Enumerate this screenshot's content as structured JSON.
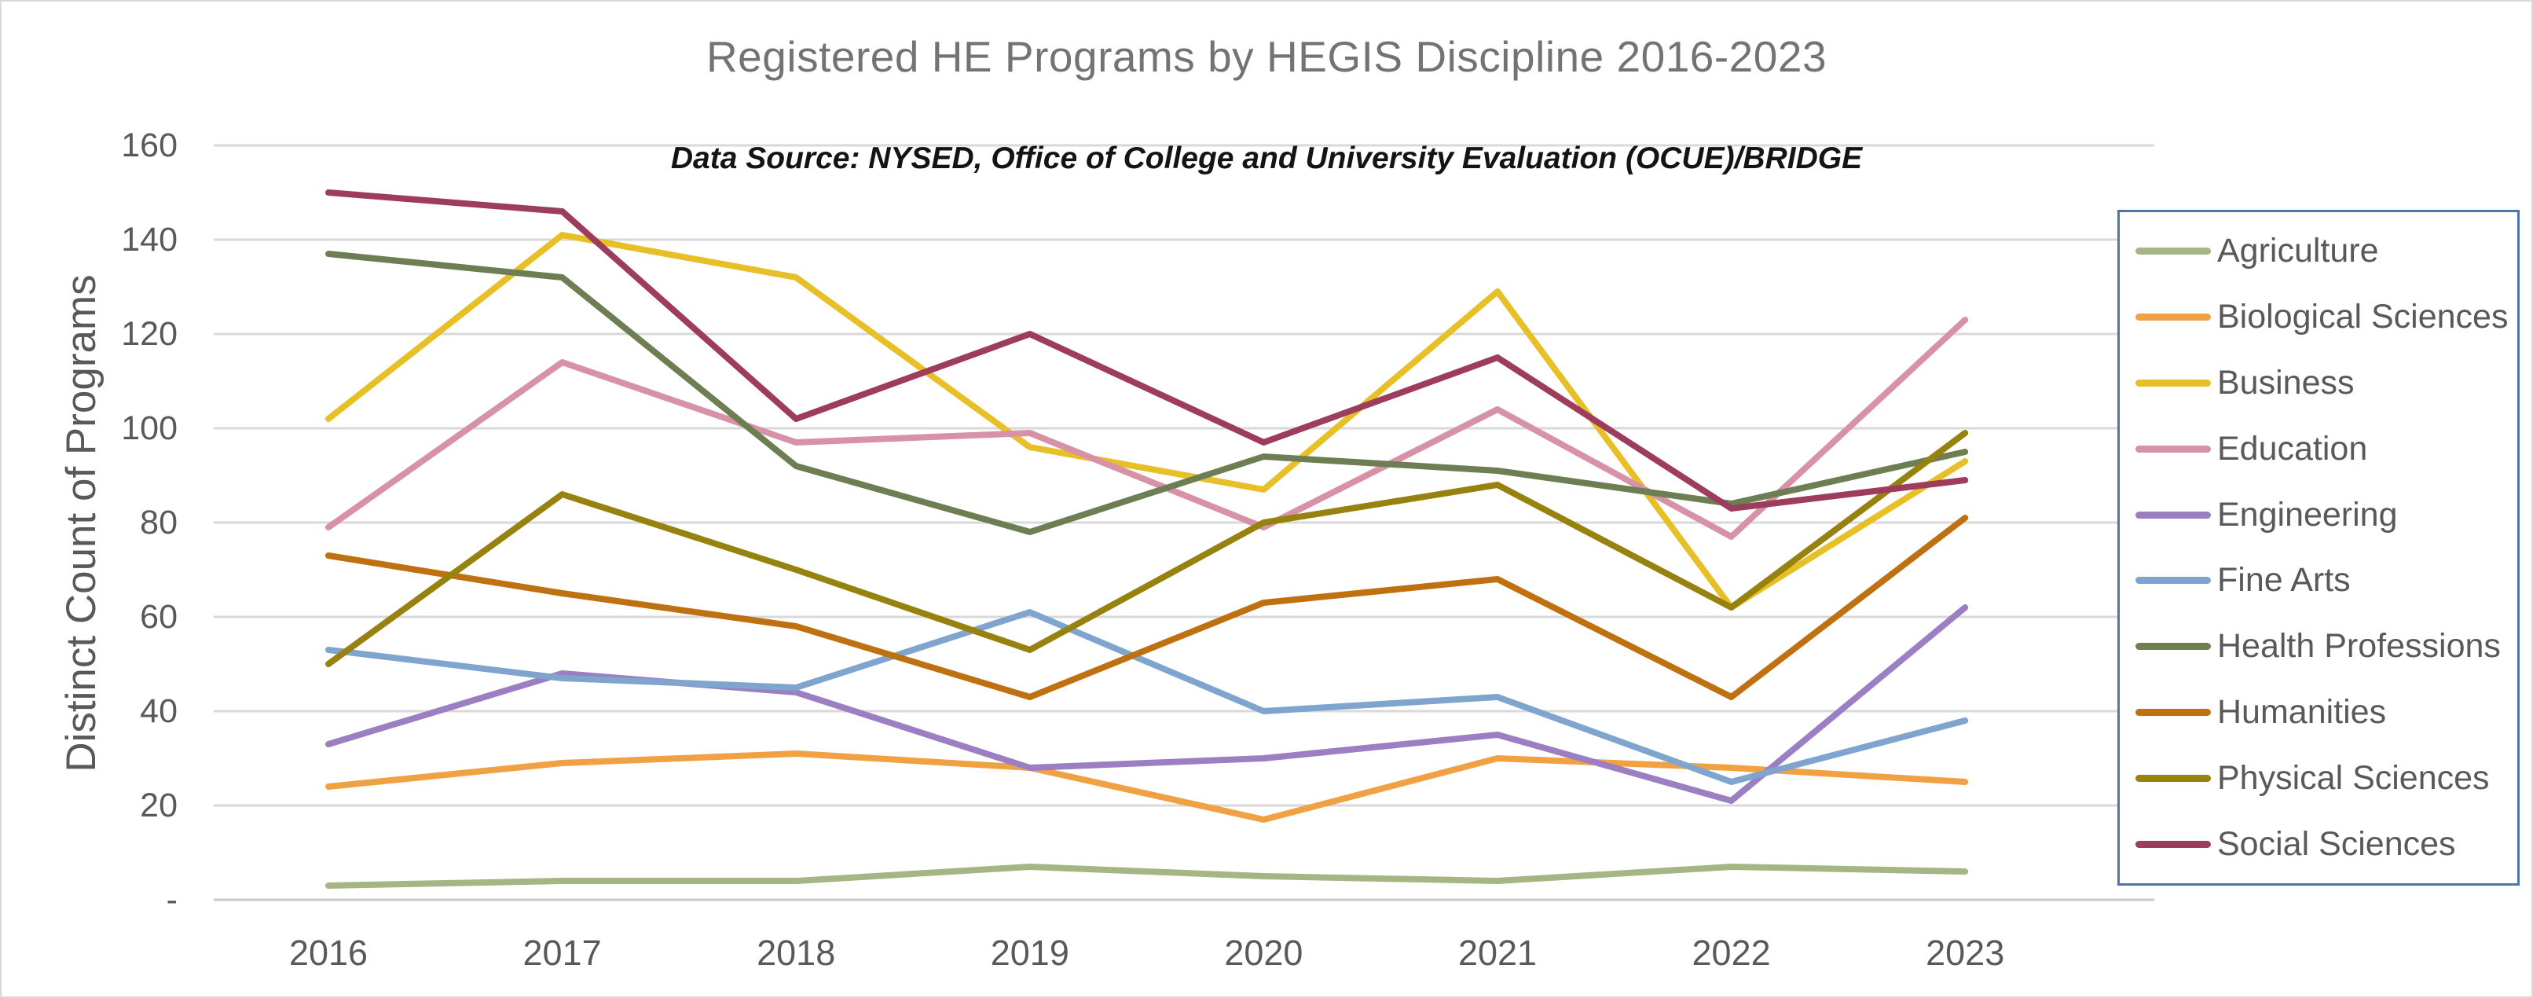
{
  "chart_data": {
    "type": "line",
    "title": "Registered HE Programs by HEGIS Discipline 2016-2023",
    "subtitle": "Data Source: NYSED, Office of College and University Evaluation (OCUE)/BRIDGE",
    "xlabel": "",
    "ylabel": "Distinct Count of Programs",
    "categories": [
      "2016",
      "2017",
      "2018",
      "2019",
      "2020",
      "2021",
      "2022",
      "2023"
    ],
    "ylim": [
      0,
      160
    ],
    "y_tick_interval": 20,
    "y_tick_labels": [
      "-",
      "20",
      "40",
      "60",
      "80",
      "100",
      "120",
      "140",
      "160"
    ],
    "grid": true,
    "legend_position": "right",
    "series": [
      {
        "name": "Agriculture",
        "color": "#A5B583",
        "values": [
          3,
          4,
          4,
          7,
          5,
          4,
          7,
          6
        ]
      },
      {
        "name": "Biological Sciences",
        "color": "#F0A143",
        "values": [
          24,
          29,
          31,
          28,
          17,
          30,
          28,
          25
        ]
      },
      {
        "name": "Business",
        "color": "#E6C026",
        "values": [
          102,
          141,
          132,
          96,
          87,
          129,
          62,
          93
        ]
      },
      {
        "name": "Education",
        "color": "#D792A7",
        "values": [
          79,
          114,
          97,
          99,
          79,
          104,
          77,
          123
        ]
      },
      {
        "name": "Engineering",
        "color": "#9B7FC2",
        "values": [
          33,
          48,
          44,
          28,
          30,
          35,
          21,
          62
        ]
      },
      {
        "name": "Fine Arts",
        "color": "#7FA5CE",
        "values": [
          53,
          47,
          45,
          61,
          40,
          43,
          25,
          38
        ]
      },
      {
        "name": "Health Professions",
        "color": "#6E7E53",
        "values": [
          137,
          132,
          92,
          78,
          94,
          91,
          84,
          95
        ]
      },
      {
        "name": "Humanities",
        "color": "#BF7010",
        "values": [
          73,
          65,
          58,
          43,
          63,
          68,
          43,
          81
        ]
      },
      {
        "name": "Physical Sciences",
        "color": "#97820F",
        "values": [
          50,
          86,
          70,
          53,
          80,
          88,
          62,
          99
        ]
      },
      {
        "name": "Social Sciences",
        "color": "#9E3C5D",
        "values": [
          150,
          146,
          102,
          120,
          97,
          115,
          83,
          89
        ]
      }
    ]
  },
  "styles": {
    "title_color": "#737373",
    "subtitle_color": "#141414",
    "axis_label_color": "#595959",
    "gridline_color": "#D9D9D9",
    "axis_line_color": "#C9C9C9",
    "legend_border_color": "#4E74A8",
    "legend_label_color": "#595959"
  }
}
